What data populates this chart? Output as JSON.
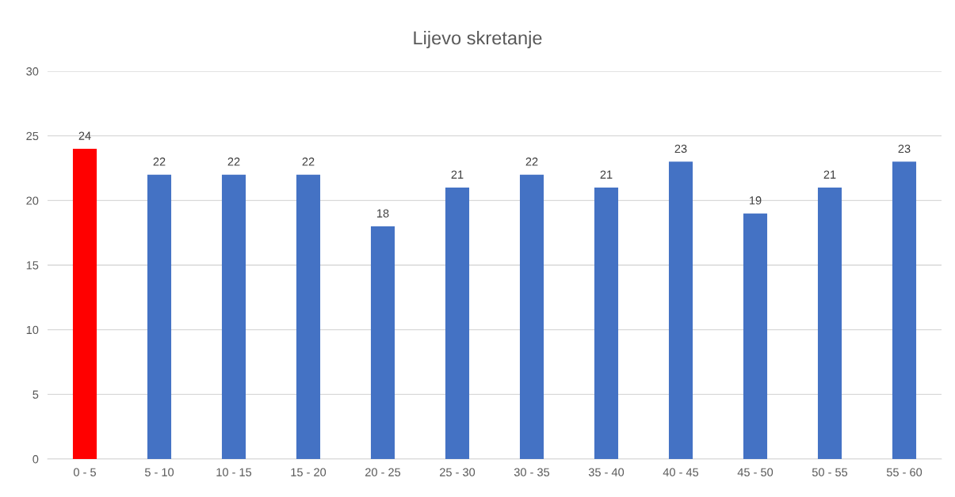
{
  "chart_data": {
    "type": "bar",
    "title": "Lijevo skretanje",
    "categories": [
      "0 - 5",
      "5 - 10",
      "10 - 15",
      "15 - 20",
      "20 - 25",
      "25 - 30",
      "30 - 35",
      "35 - 40",
      "40 - 45",
      "45 - 50",
      "50 - 55",
      "55 - 60"
    ],
    "values": [
      24,
      22,
      22,
      22,
      18,
      21,
      22,
      21,
      23,
      19,
      21,
      23
    ],
    "colors": [
      "#ff0000",
      "#4472c4",
      "#4472c4",
      "#4472c4",
      "#4472c4",
      "#4472c4",
      "#4472c4",
      "#4472c4",
      "#4472c4",
      "#4472c4",
      "#4472c4",
      "#4472c4"
    ],
    "ylim": [
      0,
      30
    ],
    "yticks": [
      0,
      5,
      10,
      15,
      20,
      25,
      30
    ],
    "grid": "y",
    "data_labels": true
  }
}
